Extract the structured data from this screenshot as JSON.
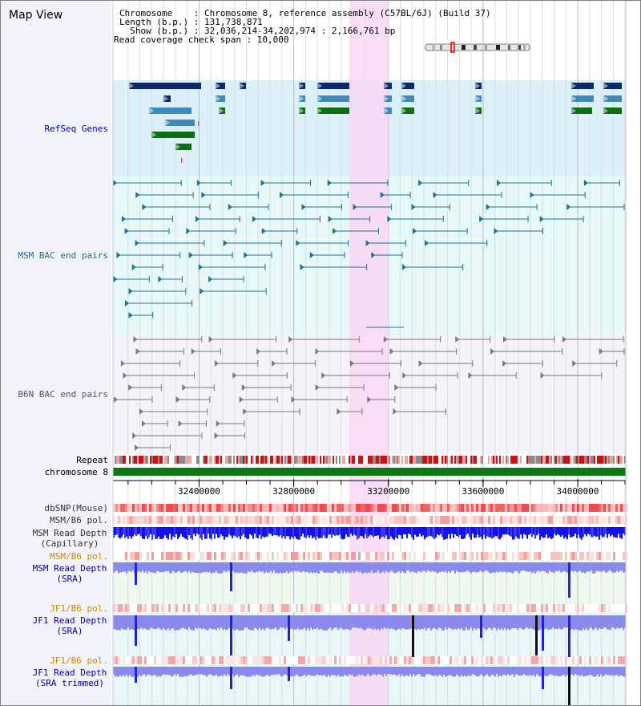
{
  "title": "Map View",
  "header": {
    "chromosome_line": "Chromosome    : Chromosome 8, reference assembly (C57BL/6J) (Build 37)",
    "length_line": "Length (b.p.) : 131,738,871",
    "show_line": "  Show (b.p.) : 32,036,214-34,202,974 : 2,166,761 bp",
    "span_line": "Read coverage check span : 10,000"
  },
  "tracks": {
    "refseq": "RefSeq Genes",
    "msm_bac": "MSM BAC end pairs",
    "b6n_bac": "B6N BAC end pairs",
    "repeat": "Repeat",
    "chromosome": "chromosome 8",
    "dbsnp": "dbSNP(Mouse)",
    "msm_b6_pol_1": "MSM/B6 pol.",
    "msm_read_depth_cap": "MSM Read Depth\n(Capillary)",
    "msm_b6_pol_2": "MSM/B6 pol.",
    "msm_read_depth_sra": "MSM Read Depth\n(SRA)",
    "jf1_b6_pol_1": "JF1/B6 pol.",
    "jf1_read_depth_sra": "JF1 Read Depth\n(SRA)",
    "jf1_b6_pol_2": "JF1/B6 pol.",
    "jf1_read_depth_trim": "JF1 Read Depth\n(SRA trimmed)"
  },
  "axis": {
    "ticks": [
      {
        "label": "32400000",
        "pos": 32400000
      },
      {
        "label": "32800000",
        "pos": 32800000
      },
      {
        "label": "33200000",
        "pos": 33200000
      },
      {
        "label": "33600000",
        "pos": 33600000
      },
      {
        "label": "34000000",
        "pos": 34000000
      }
    ],
    "start": 32036214,
    "end": 34202974
  },
  "highlight": {
    "start": 33035000,
    "end": 33200000
  },
  "colors": {
    "refseq_bg": "#dcf0fa",
    "msm_bg": "#e6f8f8",
    "b6n_bg": "#f3f3f9",
    "highlight": "#f8d8f4",
    "refseq_dark": "#0b2a6e",
    "refseq_mid": "#3f8ab8",
    "refseq_green": "#0d6e12",
    "msm_line": "#1d7390",
    "b6n_line": "#7a7a7a",
    "chromosome": "#0b7a12",
    "read_depth_blue": "#1010f0",
    "read_depth_light": "#8a8aee",
    "label_blue": "#0000a0",
    "label_orange": "#cc8800",
    "label_teal": "#1d6e8c"
  }
}
